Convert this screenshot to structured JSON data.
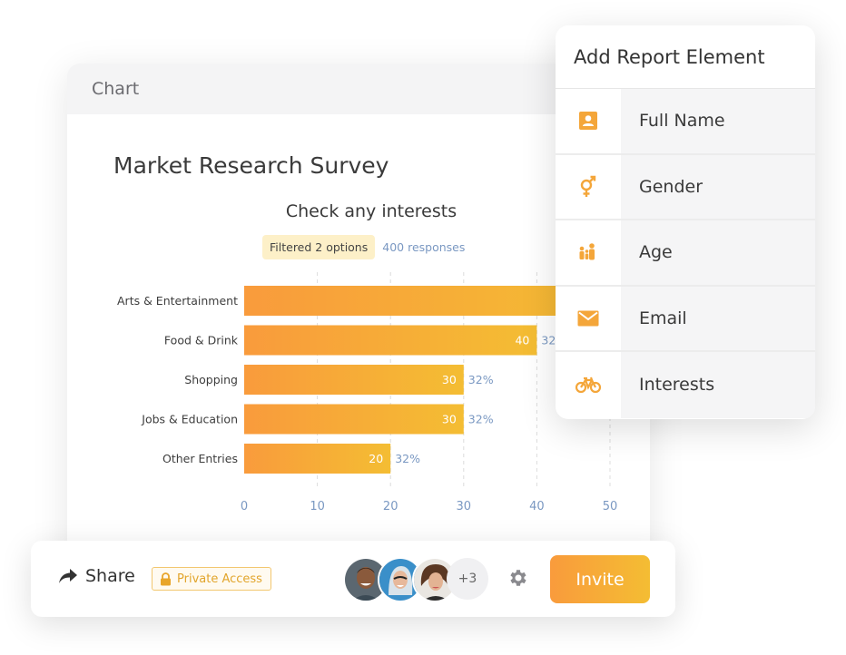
{
  "chart_card": {
    "header": "Chart",
    "survey_title": "Market Research Survey",
    "question_title": "Check any interests",
    "filter_badge": "Filtered 2 options",
    "responses": "400 responses"
  },
  "chart_data": {
    "type": "bar",
    "orientation": "horizontal",
    "categories": [
      "Arts & Entertainment",
      "Food & Drink",
      "Shopping",
      "Jobs & Education",
      "Other Entries"
    ],
    "values": [
      50,
      40,
      30,
      30,
      20
    ],
    "value_labels": [
      "",
      "40",
      "30",
      "30",
      "20"
    ],
    "percent_labels": [
      "",
      "32",
      "32%",
      "32%",
      "32%"
    ],
    "xticks": [
      "0",
      "10",
      "20",
      "30",
      "40",
      "50"
    ],
    "xlim": [
      0,
      50
    ],
    "grid": "vertical dashed",
    "colors": {
      "bar_start": "#f99b3c",
      "bar_end": "#f4bd33"
    }
  },
  "report_panel": {
    "title": "Add Report Element",
    "items": [
      {
        "label": "Full Name",
        "icon": "contact-card-icon"
      },
      {
        "label": "Gender",
        "icon": "gender-icon"
      },
      {
        "label": "Age",
        "icon": "family-icon"
      },
      {
        "label": "Email",
        "icon": "envelope-icon"
      },
      {
        "label": "Interests",
        "icon": "bicycle-icon"
      }
    ],
    "icon_color": "#f4a63a"
  },
  "share_bar": {
    "share_label": "Share",
    "private_label": "Private Access",
    "more_avatars": "+3",
    "invite_label": "Invite"
  }
}
